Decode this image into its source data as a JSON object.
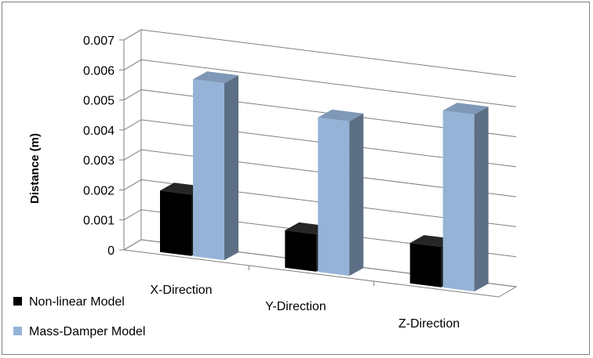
{
  "chart_data": {
    "type": "bar",
    "categories": [
      "X-Direction",
      "Y-Direction",
      "Z-Direction"
    ],
    "series": [
      {
        "name": "Non-linear Model",
        "values": [
          0.00205,
          0.00125,
          0.00135
        ],
        "color": "#000000"
      },
      {
        "name": "Mass-Damper Model",
        "values": [
          0.0059,
          0.00515,
          0.0059
        ],
        "color": "#95b3d7"
      }
    ],
    "ylabel": "Distance (m)",
    "xlabel": "",
    "ylim": [
      0,
      0.007
    ],
    "yticks": [
      "0",
      "0.001",
      "0.002",
      "0.003",
      "0.004",
      "0.005",
      "0.006",
      "0.007"
    ],
    "grid": true,
    "legend_position": "bottom-left",
    "projection": "3d"
  }
}
